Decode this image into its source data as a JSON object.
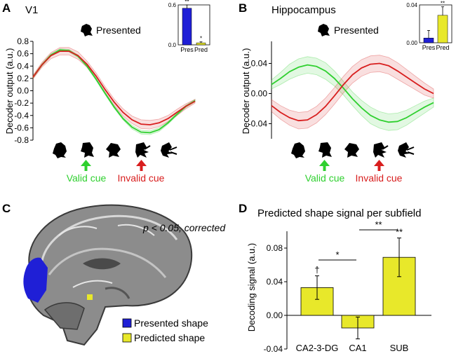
{
  "panels": {
    "A": {
      "letter": "A",
      "title": "V1",
      "presented_label": "Presented",
      "ylabel": "Decoder output (a.u.)",
      "yticks": [
        "0.8",
        "0.6",
        "0.4",
        "0.2",
        "0.0",
        "-0.2",
        "-0.4",
        "-0.6",
        "-0.8"
      ],
      "valid_cue": "Valid cue",
      "invalid_cue": "Invalid cue"
    },
    "B": {
      "letter": "B",
      "title": "Hippocampus",
      "presented_label": "Presented",
      "ylabel": "Decoder output (a.u.)",
      "yticks": [
        "0.04",
        "0.00",
        "-0.04"
      ],
      "valid_cue": "Valid cue",
      "invalid_cue": "Invalid cue"
    },
    "C": {
      "letter": "C",
      "stat_note": "p < 0.05, corrected",
      "legend": [
        "Presented shape",
        "Predicted shape"
      ]
    },
    "D": {
      "letter": "D",
      "title": "Predicted shape signal per subfield",
      "ylabel": "Decoding signal (a.u.)",
      "yticks": [
        "0.08",
        "0.04",
        "0.00",
        "-0.04"
      ]
    }
  },
  "colors": {
    "valid": "#2fd02f",
    "invalid": "#d81e1e",
    "presented": "#1f1fd6",
    "predicted": "#e8e82a"
  },
  "chart_data": [
    {
      "type": "line",
      "panel": "A",
      "ylim": [
        -0.8,
        0.8
      ],
      "x": [
        0,
        0.25,
        0.5,
        0.75,
        1.0,
        1.25,
        1.5,
        1.75,
        2.0,
        2.25,
        2.5,
        2.75,
        3.0,
        3.25,
        3.5,
        3.75,
        4.0,
        4.25,
        4.5
      ],
      "series": [
        {
          "color": "valid",
          "values": [
            0.22,
            0.42,
            0.58,
            0.66,
            0.65,
            0.56,
            0.4,
            0.19,
            -0.04,
            -0.26,
            -0.45,
            -0.59,
            -0.67,
            -0.68,
            -0.63,
            -0.52,
            -0.38,
            -0.25,
            -0.16
          ],
          "err": [
            0.02,
            0.02,
            0.02,
            0.02,
            0.02,
            0.02,
            0.02,
            0.02,
            0.02,
            0.02,
            0.02,
            0.03,
            0.03,
            0.03,
            0.03,
            0.02,
            0.02,
            0.02,
            0.02
          ]
        },
        {
          "color": "invalid",
          "values": [
            0.22,
            0.42,
            0.57,
            0.64,
            0.64,
            0.57,
            0.43,
            0.24,
            0.02,
            -0.18,
            -0.35,
            -0.47,
            -0.54,
            -0.55,
            -0.52,
            -0.45,
            -0.35,
            -0.25,
            -0.17
          ],
          "err": [
            0.03,
            0.04,
            0.05,
            0.06,
            0.06,
            0.06,
            0.05,
            0.05,
            0.05,
            0.05,
            0.06,
            0.06,
            0.07,
            0.07,
            0.06,
            0.05,
            0.05,
            0.04,
            0.03
          ]
        }
      ]
    },
    {
      "type": "line",
      "panel": "B",
      "ylim": [
        -0.06,
        0.06
      ],
      "x": [
        0,
        0.25,
        0.5,
        0.75,
        1.0,
        1.25,
        1.5,
        1.75,
        2.0,
        2.25,
        2.5,
        2.75,
        3.0,
        3.25,
        3.5,
        3.75,
        4.0,
        4.25,
        4.5
      ],
      "series": [
        {
          "color": "valid",
          "values": [
            0.012,
            0.02,
            0.029,
            0.035,
            0.038,
            0.036,
            0.03,
            0.02,
            0.007,
            -0.007,
            -0.019,
            -0.029,
            -0.035,
            -0.038,
            -0.037,
            -0.032,
            -0.025,
            -0.018,
            -0.012
          ],
          "err": [
            0.006,
            0.008,
            0.01,
            0.011,
            0.011,
            0.011,
            0.011,
            0.01,
            0.009,
            0.009,
            0.01,
            0.011,
            0.011,
            0.011,
            0.011,
            0.01,
            0.009,
            0.008,
            0.006
          ]
        },
        {
          "color": "invalid",
          "values": [
            -0.016,
            -0.025,
            -0.032,
            -0.036,
            -0.035,
            -0.028,
            -0.017,
            -0.003,
            0.012,
            0.025,
            0.034,
            0.039,
            0.04,
            0.037,
            0.03,
            0.022,
            0.014,
            0.006,
            0.0
          ],
          "err": [
            0.008,
            0.009,
            0.01,
            0.011,
            0.011,
            0.011,
            0.011,
            0.011,
            0.011,
            0.011,
            0.011,
            0.011,
            0.011,
            0.011,
            0.011,
            0.01,
            0.009,
            0.008,
            0.006
          ]
        }
      ]
    },
    {
      "type": "bar",
      "panel": "A-inset",
      "categories": [
        "Pres",
        "Pred"
      ],
      "values": [
        0.55,
        0.03
      ],
      "err": [
        0.05,
        0.015
      ],
      "ylim": [
        0,
        0.6
      ],
      "yticks": [
        "0.6",
        "0.0"
      ],
      "stars": [
        "**",
        "*"
      ],
      "colors": [
        "presented",
        "predicted"
      ]
    },
    {
      "type": "bar",
      "panel": "B-inset",
      "categories": [
        "Pres",
        "Pred"
      ],
      "values": [
        0.005,
        0.029
      ],
      "err": [
        0.008,
        0.009
      ],
      "ylim": [
        0,
        0.04
      ],
      "yticks": [
        "0.04",
        "0.00"
      ],
      "stars": [
        "",
        "**"
      ],
      "colors": [
        "presented",
        "predicted"
      ]
    },
    {
      "type": "bar",
      "panel": "D",
      "categories": [
        "CA2-3-DG",
        "CA1",
        "SUB"
      ],
      "values": [
        0.033,
        -0.015,
        0.069
      ],
      "err": [
        0.014,
        0.013,
        0.023
      ],
      "ylim": [
        -0.04,
        0.1
      ],
      "stars": [
        "†",
        "",
        "**"
      ],
      "brackets": [
        {
          "from": 0,
          "to": 1,
          "label": "*"
        },
        {
          "from": 1,
          "to": 2,
          "label": "**"
        }
      ]
    }
  ]
}
